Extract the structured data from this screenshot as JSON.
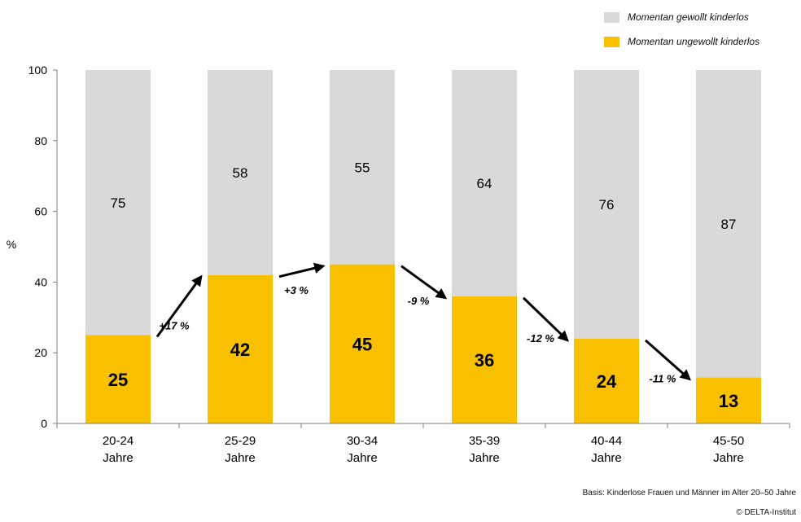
{
  "chart_data": {
    "type": "bar",
    "stacked": true,
    "categories": [
      [
        "20-24",
        "Jahre"
      ],
      [
        "25-29",
        "Jahre"
      ],
      [
        "30-34",
        "Jahre"
      ],
      [
        "35-39",
        "Jahre"
      ],
      [
        "40-44",
        "Jahre"
      ],
      [
        "45-50",
        "Jahre"
      ]
    ],
    "series": [
      {
        "name": "Momentan ungewollt kinderlos",
        "color": "#F9C000",
        "values": [
          25,
          42,
          45,
          36,
          24,
          13
        ],
        "labels": [
          "25",
          "42",
          "45",
          "36",
          "24",
          "13"
        ]
      },
      {
        "name": "Momentan gewollt kinderlos",
        "color": "#D9D9D9",
        "values": [
          75,
          58,
          55,
          64,
          76,
          87
        ],
        "labels": [
          "75",
          "58",
          "55",
          "64",
          "76",
          "87"
        ]
      }
    ],
    "changes": [
      "+17 %",
      "+3 %",
      "-9 %",
      "-12 %",
      "-11 %"
    ],
    "ylabel": "%",
    "ylim": [
      0,
      100
    ],
    "yticks": [
      "0",
      "20",
      "40",
      "60",
      "80",
      "100"
    ],
    "grid": false,
    "legend_position": "top-right"
  },
  "legend": [
    {
      "label": "Momentan gewollt kinderlos",
      "color": "#D9D9D9"
    },
    {
      "label": "Momentan ungewollt kinderlos",
      "color": "#F9C000"
    }
  ],
  "footer": {
    "basis": "Basis: Kinderlose Frauen und Männer im Alter 20–50 Jahre",
    "source": "© DELTA-Institut"
  }
}
